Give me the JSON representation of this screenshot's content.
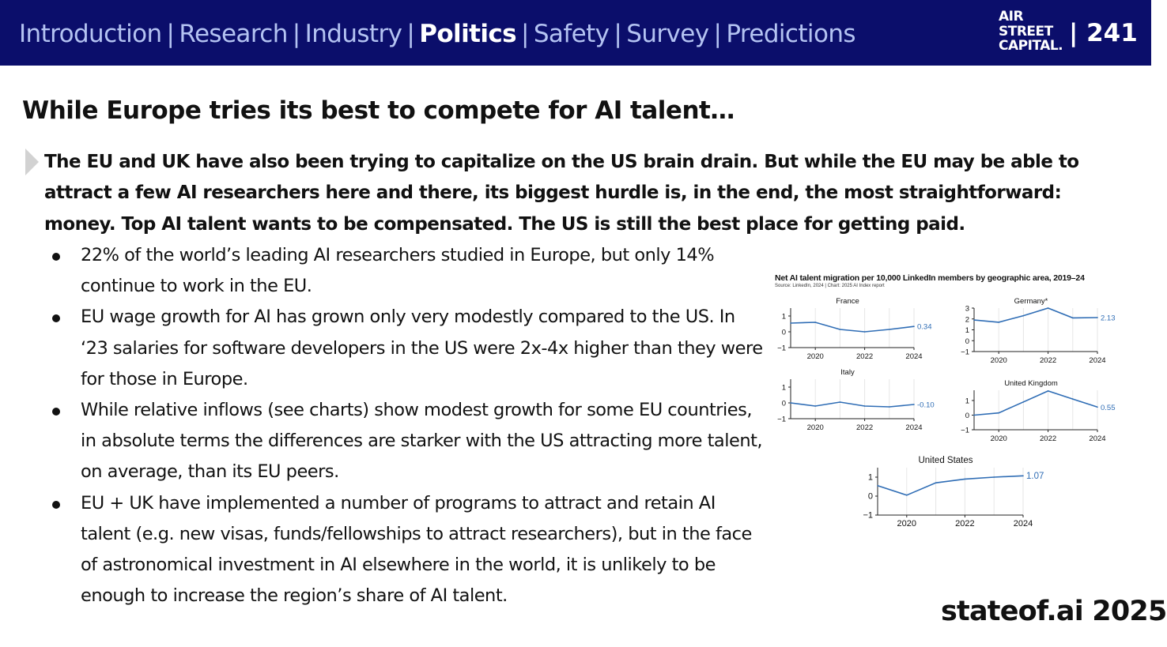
{
  "header": {
    "nav": [
      {
        "label": "Introduction",
        "active": false
      },
      {
        "label": "Research",
        "active": false
      },
      {
        "label": "Industry",
        "active": false
      },
      {
        "label": "Politics",
        "active": true
      },
      {
        "label": "Safety",
        "active": false
      },
      {
        "label": "Survey",
        "active": false
      },
      {
        "label": "Predictions",
        "active": false
      }
    ],
    "separator": "|",
    "logo_lines": [
      "AIR",
      "STREET",
      "CAPITAL."
    ],
    "page_number": "| 241"
  },
  "slide": {
    "title": "While Europe tries its best to compete for AI talent…",
    "lead": "The EU and UK have also been trying to capitalize on the US brain drain. But while the EU may be able to attract a few AI researchers here and there, its biggest hurdle is, in the end, the most straightforward: money. Top AI talent wants to be compensated. The US is still the best place for getting paid.",
    "bullets": [
      "22% of the world’s leading AI researchers studied in Europe, but only 14% continue to work in the EU.",
      "EU wage growth for AI has grown only very modestly compared to the US. In ‘23 salaries for software developers in the US were 2x-4x higher than they were for those in Europe.",
      "While relative inflows (see charts) show modest growth for some EU countries, in absolute terms the differences are starker with the US attracting more talent, on average, than its EU peers.",
      "EU + UK have implemented a number of programs to attract and retain AI talent (e.g. new visas, funds/fellowships to attract researchers), but in the face of astronomical investment in AI elsewhere in the world, it is unlikely to be enough to increase the region’s share of AI talent."
    ]
  },
  "figure": {
    "title": "Net AI talent migration per 10,000 LinkedIn members by geographic area, 2019–24",
    "source": "Source: LinkedIn, 2024 | Chart: 2025 AI Index report"
  },
  "colors": {
    "header_bg": "#0b0e6b",
    "nav_text": "#b4c3f2",
    "line": "#2f6db5",
    "grid": "#e6e6e6"
  },
  "chart_data": [
    {
      "type": "line",
      "title": "France",
      "x": [
        2019,
        2020,
        2021,
        2022,
        2023,
        2024
      ],
      "values": [
        0.55,
        0.6,
        0.15,
        0.0,
        0.15,
        0.34
      ],
      "end_label": "0.34",
      "yticks": [
        "1",
        "0",
        "−1"
      ],
      "ylim": [
        -1,
        1.5
      ],
      "xticks": [
        "2020",
        "2022",
        "2024"
      ]
    },
    {
      "type": "line",
      "title": "Germany*",
      "x": [
        2019,
        2020,
        2021,
        2022,
        2023,
        2024
      ],
      "values": [
        1.9,
        1.7,
        2.3,
        3.0,
        2.1,
        2.13
      ],
      "end_label": "2.13",
      "yticks": [
        "3",
        "2",
        "1",
        "0",
        "−1"
      ],
      "ylim": [
        -1,
        3
      ],
      "xticks": [
        "2020",
        "2022",
        "2024"
      ]
    },
    {
      "type": "line",
      "title": "Italy",
      "x": [
        2019,
        2020,
        2021,
        2022,
        2023,
        2024
      ],
      "values": [
        0.0,
        -0.2,
        0.05,
        -0.2,
        -0.25,
        -0.1
      ],
      "end_label": "-0.10",
      "yticks": [
        "1",
        "0",
        "−1"
      ],
      "ylim": [
        -1,
        1.5
      ],
      "xticks": [
        "2020",
        "2022",
        "2024"
      ]
    },
    {
      "type": "line",
      "title": "United Kingdom",
      "x": [
        2019,
        2020,
        2021,
        2022,
        2023,
        2024
      ],
      "values": [
        0.0,
        0.15,
        0.9,
        1.65,
        1.1,
        0.55
      ],
      "end_label": "0.55",
      "yticks": [
        "1",
        "0",
        "−1"
      ],
      "ylim": [
        -1,
        1.7
      ],
      "xticks": [
        "2020",
        "2022",
        "2024"
      ]
    },
    {
      "type": "line",
      "title": "United States",
      "x": [
        2019,
        2020,
        2021,
        2022,
        2023,
        2024
      ],
      "values": [
        0.55,
        0.05,
        0.7,
        0.9,
        1.0,
        1.07
      ],
      "end_label": "1.07",
      "yticks": [
        "1",
        "0",
        "−1"
      ],
      "ylim": [
        -1,
        1.5
      ],
      "xticks": [
        "2020",
        "2022",
        "2024"
      ]
    }
  ],
  "footer": {
    "text": "stateof.ai 2025"
  }
}
